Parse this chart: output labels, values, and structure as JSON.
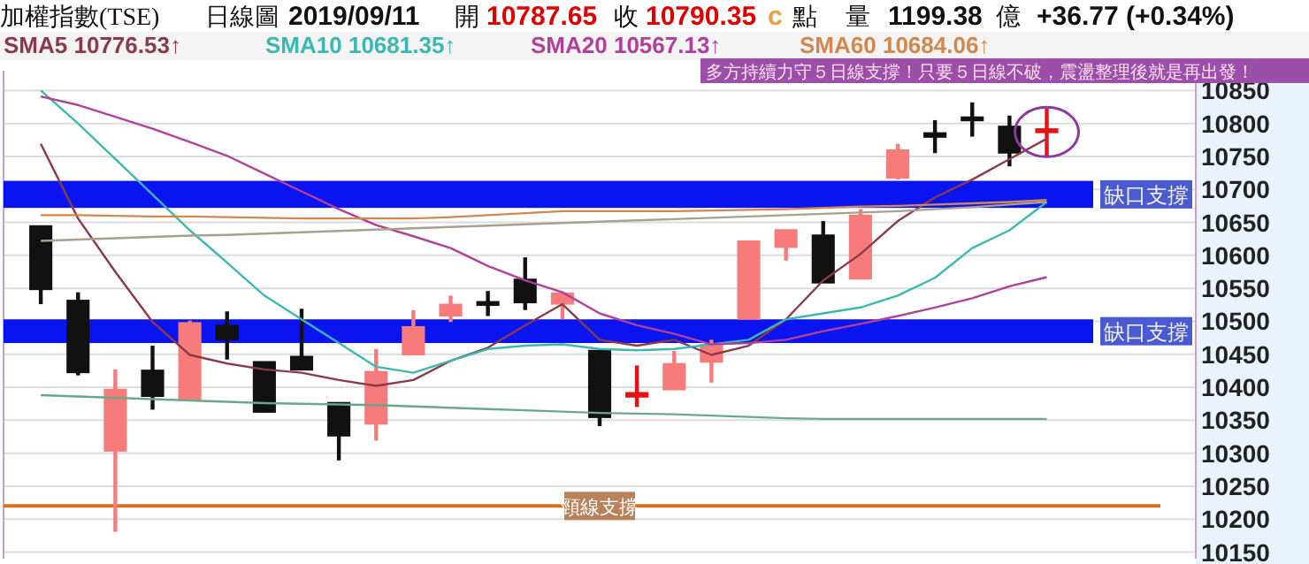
{
  "chart_data": {
    "type": "candlestick",
    "title": "加權指數(TSE)",
    "annotations": [
      "日線圖",
      "2019/09/11",
      "開",
      "10787.65",
      "收",
      "10790.35",
      "c",
      "點",
      "量",
      "1199.38",
      "億",
      "+36.77 (+0.34%)",
      "多方持續力守５日線支撐！只要５日線不破，震盪整理後就是再出發！"
    ],
    "categories": [
      null,
      null,
      null,
      null,
      null,
      null,
      null,
      null,
      null,
      null,
      null,
      null,
      null,
      null,
      null,
      null,
      null,
      null,
      null,
      null,
      null,
      null,
      null,
      null,
      null,
      null,
      null,
      null
    ],
    "ohlc": [
      [
        10643,
        10643,
        10526,
        10550
      ],
      [
        10530,
        10544,
        10418,
        10424
      ],
      [
        10305,
        10427,
        10181,
        10395
      ],
      [
        10424,
        10463,
        10366,
        10388
      ],
      [
        10383,
        10501,
        10383,
        10496
      ],
      [
        10492,
        10515,
        10442,
        10474
      ],
      [
        10437,
        10437,
        10362,
        10364
      ],
      [
        10445,
        10519,
        10428,
        10428
      ],
      [
        10375,
        10375,
        10289,
        10328
      ],
      [
        10346,
        10458,
        10319,
        10422
      ],
      [
        10451,
        10517,
        10451,
        10490
      ],
      [
        10510,
        10539,
        10499,
        10524
      ],
      [
        10528,
        10546,
        10508,
        10526
      ],
      [
        10562,
        10597,
        10517,
        10530
      ],
      [
        10528,
        10544,
        10503,
        10541
      ],
      [
        10454,
        10454,
        10341,
        10356
      ],
      [
        10387,
        10433,
        10370,
        10390
      ],
      [
        10398,
        10455,
        10398,
        10434
      ],
      [
        10440,
        10472,
        10407,
        10463
      ],
      [
        10505,
        10620,
        10505,
        10620
      ],
      [
        10614,
        10637,
        10592,
        10637
      ],
      [
        10629,
        10652,
        10559,
        10560
      ],
      [
        10566,
        10670,
        10566,
        10659
      ],
      [
        10719,
        10769,
        10715,
        10758
      ],
      [
        10784,
        10805,
        10755,
        10781
      ],
      [
        10808,
        10832,
        10780,
        10806
      ],
      [
        10794,
        10812,
        10735,
        10757
      ],
      [
        10788,
        10823,
        10751,
        10790
      ]
    ],
    "colors": [
      "#111111",
      "#111111",
      "#f77b7b",
      "#111111",
      "#f77b7b",
      "#111111",
      "#111111",
      "#111111",
      "#111111",
      "#f77b7b",
      "#f77b7b",
      "#f77b7b",
      "#111111",
      "#111111",
      "#f77b7b",
      "#111111",
      "#e81010",
      "#f77b7b",
      "#f77b7b",
      "#f77b7b",
      "#f77b7b",
      "#111111",
      "#f77b7b",
      "#f77b7b",
      "#111111",
      "#111111",
      "#111111",
      "#e81010"
    ],
    "series": [
      {
        "type": "line",
        "name": "SMA5 10776.53↑",
        "color": "#8b3a4a",
        "values": [
          10769,
          10656,
          10575,
          10499,
          10449,
          10436,
          10427,
          10422,
          10411,
          10402,
          10411,
          10440,
          10460,
          10494,
          10526,
          10472,
          10463,
          10472,
          10449,
          10463,
          10503,
          10562,
          10602,
          10652,
          10688,
          10715,
          10746,
          10777
        ]
      },
      {
        "type": "line",
        "name": "SMA10 10681.35↑",
        "color": "#3cb8b0",
        "values": [
          10850,
          10800,
          10746,
          10692,
          10638,
          10589,
          10539,
          10503,
          10467,
          10431,
          10422,
          10440,
          10458,
          10463,
          10465,
          10458,
          10456,
          10458,
          10465,
          10472,
          10503,
          10512,
          10521,
          10539,
          10566,
          10611,
          10638,
          10681
        ]
      },
      {
        "type": "line",
        "name": "SMA20 10567.13↑",
        "color": "#b0409a",
        "values": [
          10841,
          10828,
          10810,
          10792,
          10772,
          10751,
          10724,
          10697,
          10670,
          10646,
          10629,
          10611,
          10584,
          10562,
          10544,
          10512,
          10494,
          10481,
          10465,
          10467,
          10472,
          10485,
          10496,
          10508,
          10521,
          10535,
          10553,
          10567
        ]
      },
      {
        "type": "line",
        "name": "SMA60 10684.06↑",
        "color": "#d08850",
        "values": [
          10661,
          10661,
          10660,
          10659,
          10659,
          10658,
          10657,
          10656,
          10656,
          10656,
          10656,
          10658,
          10661,
          10664,
          10667,
          10667,
          10667,
          10667,
          10668,
          10669,
          10670,
          10672,
          10674,
          10675,
          10677,
          10679,
          10681,
          10684
        ]
      },
      {
        "type": "line",
        "color": "#a8a090",
        "values": [
          10622,
          10624,
          10626,
          10628,
          10630,
          10631,
          10633,
          10635,
          10637,
          10639,
          10641,
          10643,
          10645,
          10647,
          10649,
          10651,
          10653,
          10655,
          10657,
          10659,
          10661,
          10663,
          10665,
          10667,
          10670,
          10673,
          10677,
          10681
        ]
      },
      {
        "type": "line",
        "color": "#6aa88a",
        "values": [
          10388,
          10386,
          10384,
          10382,
          10380,
          10378,
          10376,
          10375,
          10374,
          10373,
          10371,
          10369,
          10367,
          10365,
          10363,
          10361,
          10360,
          10359,
          10357,
          10355,
          10353,
          10352,
          10352,
          10352,
          10352,
          10352,
          10352,
          10352
        ]
      }
    ],
    "ylim": [
      10140,
      10880
    ],
    "yticks": [
      10150,
      10200,
      10250,
      10300,
      10350,
      10400,
      10450,
      10500,
      10550,
      10600,
      10650,
      10700,
      10750,
      10800,
      10850
    ],
    "grid": "y",
    "bands": [
      {
        "axis": "y",
        "from": 10672,
        "to": 10713,
        "label": "缺口支撐",
        "color": "#0a14f0"
      },
      {
        "axis": "y",
        "from": 10467,
        "to": 10503,
        "label": "缺口支撐",
        "color": "#0a14f0"
      }
    ],
    "ref_lines": [
      {
        "axis": "y",
        "value": 10220,
        "label": "頸線支撐",
        "color": "#d4701e"
      }
    ],
    "legend": "top",
    "tick_labels": "y"
  }
}
